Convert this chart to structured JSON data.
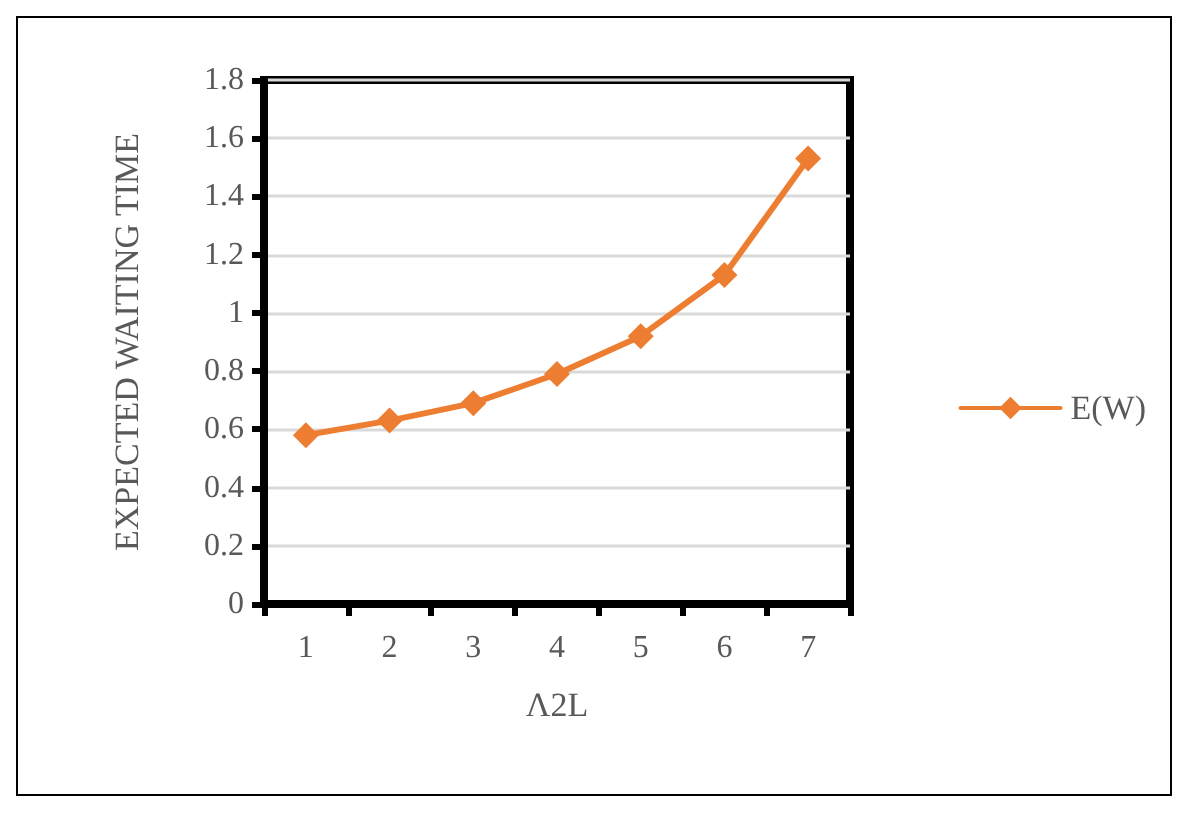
{
  "chart_data": {
    "type": "line",
    "xlabel": "Λ2L",
    "ylabel": "EXPECTED WAITING TIME",
    "categories": [
      "1",
      "2",
      "3",
      "4",
      "5",
      "6",
      "7"
    ],
    "series": [
      {
        "name": "E(W)",
        "color": "#ed7d31",
        "values": [
          0.58,
          0.63,
          0.69,
          0.79,
          0.92,
          1.13,
          1.53
        ]
      }
    ],
    "ylim": [
      0,
      1.8
    ],
    "yticks": [
      0,
      0.2,
      0.4,
      0.6,
      0.8,
      1,
      1.2,
      1.4,
      1.6,
      1.8
    ],
    "grid": "y",
    "legend": "right",
    "marker": "diamond",
    "line_style": "solid"
  }
}
